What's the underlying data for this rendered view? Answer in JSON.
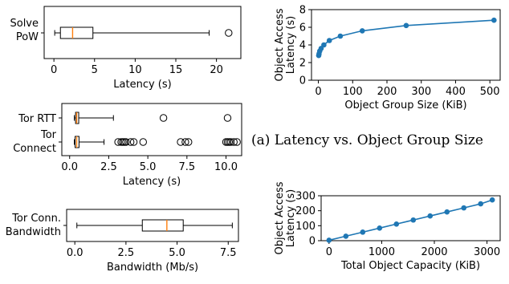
{
  "caption": "(a) Latency vs. Object Group Size",
  "chart_data": [
    {
      "type": "box",
      "categories": [
        "Solve PoW"
      ],
      "xlabel": "Latency (s)",
      "xlim": [
        -1.2,
        23
      ],
      "xticks": [
        0,
        5,
        10,
        15,
        20
      ],
      "boxes": [
        {
          "label": "Solve PoW",
          "whisker_low": 0.1,
          "q1": 0.8,
          "median": 2.3,
          "q3": 4.8,
          "whisker_high": 19.1,
          "outliers": [
            21.5
          ]
        }
      ]
    },
    {
      "type": "box",
      "categories": [
        "Tor RTT",
        "Tor Connect"
      ],
      "xlabel": "Latency (s)",
      "xlim": [
        -0.5,
        11
      ],
      "xticks": [
        0.0,
        2.5,
        5.0,
        7.5,
        10.0
      ],
      "tick_labels": [
        "0.0",
        "2.5",
        "5.0",
        "7.5",
        "10.0"
      ],
      "boxes": [
        {
          "label": "Tor RTT",
          "whisker_low": 0.3,
          "q1": 0.38,
          "median": 0.45,
          "q3": 0.58,
          "whisker_high": 2.8,
          "outliers": [
            6.0,
            10.1
          ]
        },
        {
          "label": "Tor Connect",
          "whisker_low": 0.3,
          "q1": 0.35,
          "median": 0.45,
          "q3": 0.6,
          "whisker_high": 2.2,
          "outliers": [
            3.1,
            3.3,
            3.4,
            3.5,
            3.6,
            3.9,
            4.1,
            4.7,
            7.1,
            7.4,
            7.6,
            10.0,
            10.1,
            10.2,
            10.3,
            10.5,
            10.7
          ]
        }
      ]
    },
    {
      "type": "box",
      "categories": [
        "Tor Conn. Bandwidth"
      ],
      "xlabel": "Bandwidth (Mb/s)",
      "xlim": [
        -0.4,
        8
      ],
      "xticks": [
        0.0,
        2.5,
        5.0,
        7.5
      ],
      "tick_labels": [
        "0.0",
        "2.5",
        "5.0",
        "7.5"
      ],
      "boxes": [
        {
          "label": "Tor Conn. Bandwidth",
          "whisker_low": 0.1,
          "q1": 3.3,
          "median": 4.5,
          "q3": 5.3,
          "whisker_high": 7.7,
          "outliers": []
        }
      ]
    },
    {
      "type": "line",
      "xlabel": "Object Group Size (KiB)",
      "ylabel": "Object Access Latency (s)",
      "xlim": [
        -20,
        530
      ],
      "ylim": [
        0,
        8
      ],
      "xticks": [
        0,
        100,
        200,
        300,
        400,
        500
      ],
      "yticks": [
        0,
        2,
        4,
        6,
        8
      ],
      "x": [
        1,
        2,
        4,
        8,
        16,
        32,
        64,
        128,
        256,
        512
      ],
      "y": [
        2.8,
        3.0,
        3.3,
        3.6,
        4.0,
        4.5,
        5.0,
        5.6,
        6.2,
        6.8
      ]
    },
    {
      "type": "line",
      "xlabel": "Total Object Capacity (KiB)",
      "ylabel": "Object Access Latency (s)",
      "xlim": [
        -150,
        3250
      ],
      "ylim": [
        0,
        300
      ],
      "xticks": [
        0,
        1000,
        2000,
        3000
      ],
      "yticks": [
        0,
        100,
        200,
        300
      ],
      "x": [
        0,
        320,
        640,
        960,
        1280,
        1600,
        1920,
        2240,
        2560,
        2880,
        3100
      ],
      "y": [
        3,
        30,
        57,
        84,
        111,
        138,
        165,
        192,
        219,
        246,
        272
      ]
    }
  ]
}
